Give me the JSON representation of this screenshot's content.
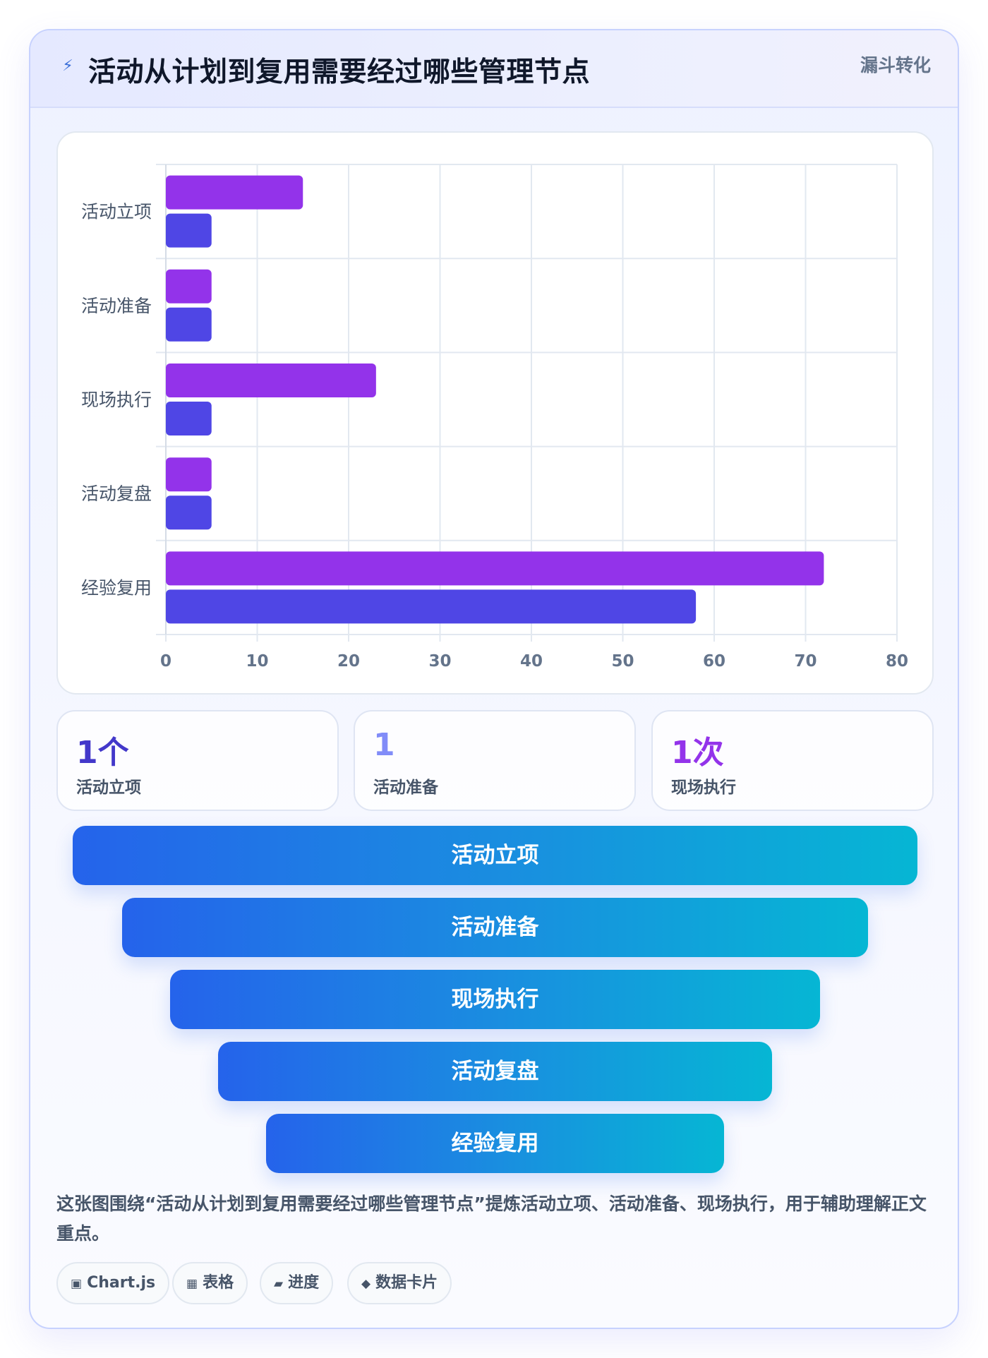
{
  "header": {
    "icon": "lightning-icon",
    "title": "活动从计划到复用需要经过哪些管理节点",
    "tag": "漏斗转化"
  },
  "chart_data": {
    "type": "bar",
    "orientation": "horizontal",
    "categories": [
      "活动立项",
      "活动准备",
      "现场执行",
      "活动复盘",
      "经验复用"
    ],
    "series": [
      {
        "values": [
          15,
          5,
          23,
          5,
          72
        ],
        "color": "#9333ea"
      },
      {
        "values": [
          5,
          5,
          5,
          5,
          58
        ],
        "color": "#4f46e5"
      }
    ],
    "xlim": [
      0,
      80
    ],
    "xticks": [
      0,
      10,
      20,
      30,
      40,
      50,
      60,
      70,
      80
    ],
    "grid": true,
    "legend": "none"
  },
  "stats": [
    {
      "value": "1个",
      "label": "活动立项",
      "color": "#4338ca"
    },
    {
      "value": "1",
      "label": "活动准备",
      "color": "#818cf8"
    },
    {
      "value": "1次",
      "label": "现场执行",
      "color": "#9333ea"
    }
  ],
  "funnel": [
    "活动立项",
    "活动准备",
    "现场执行",
    "活动复盘",
    "经验复用"
  ],
  "description": "这张图围绕“活动从计划到复用需要经过哪些管理节点”提炼活动立项、活动准备、现场执行，用于辅助理解正文重点。",
  "chips": [
    {
      "icon": "▣",
      "icon_name": "chart-icon",
      "label": "Chart.js"
    },
    {
      "icon": "▦",
      "icon_name": "table-icon",
      "label": "表格"
    },
    {
      "icon": "▰",
      "icon_name": "progress-icon",
      "label": "进度"
    },
    {
      "icon": "◆",
      "icon_name": "diamond-icon",
      "label": "数据卡片"
    }
  ]
}
